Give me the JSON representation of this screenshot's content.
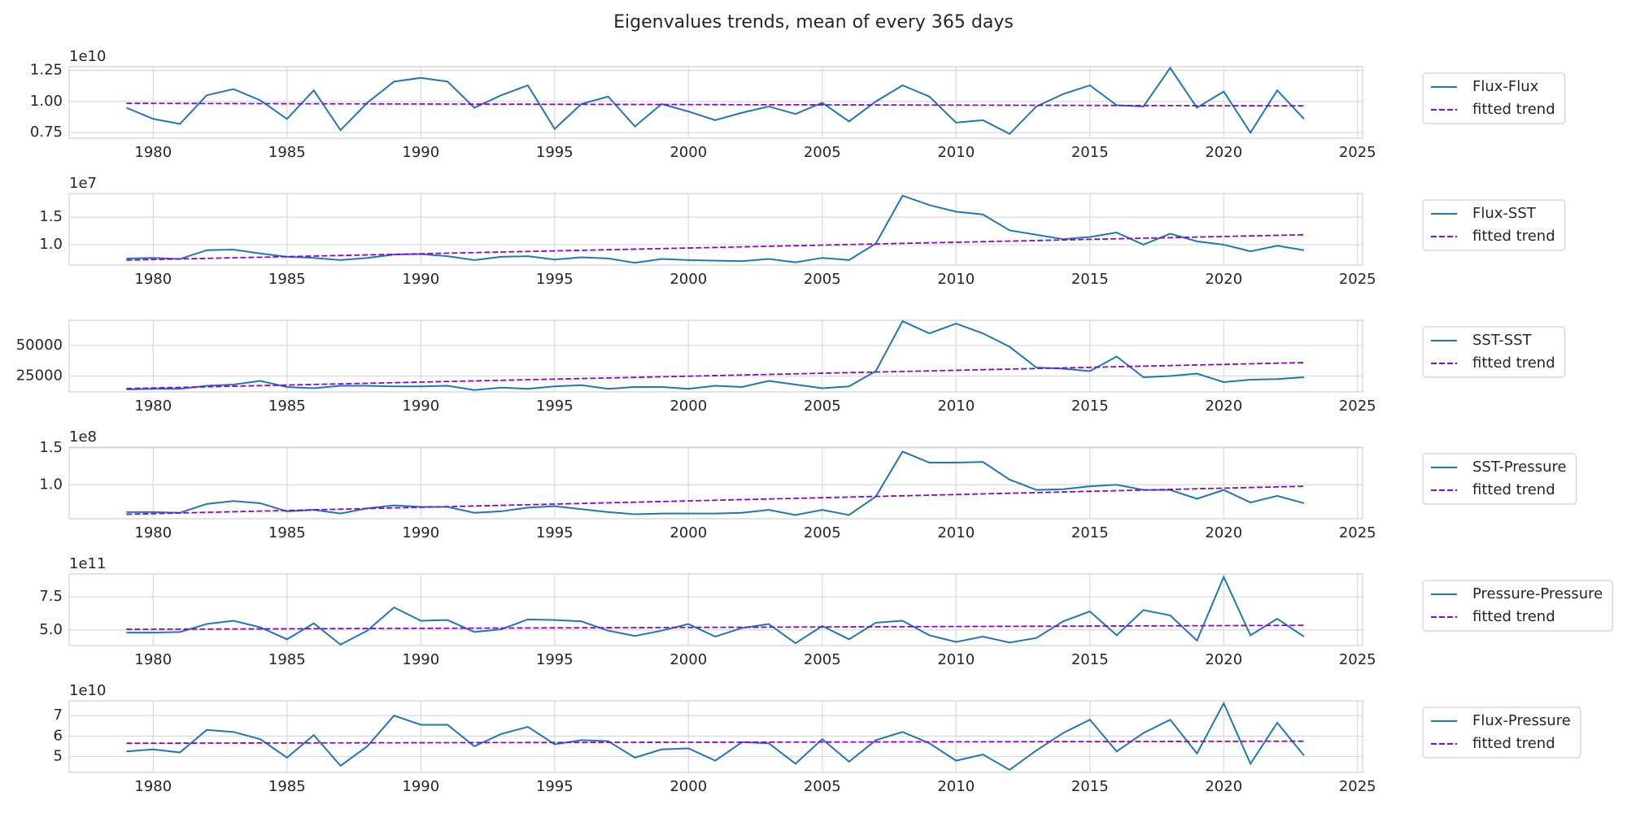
{
  "title": "Eigenvalues trends, mean of every 365 days",
  "chart_data": [
    {
      "type": "line",
      "x": [
        1979,
        1980,
        1981,
        1982,
        1983,
        1984,
        1985,
        1986,
        1987,
        1988,
        1989,
        1990,
        1991,
        1992,
        1993,
        1994,
        1995,
        1996,
        1997,
        1998,
        1999,
        2000,
        2001,
        2002,
        2003,
        2004,
        2005,
        2006,
        2007,
        2008,
        2009,
        2010,
        2011,
        2012,
        2013,
        2014,
        2015,
        2016,
        2017,
        2018,
        2019,
        2020,
        2021,
        2022,
        2023
      ],
      "series": [
        {
          "name": "Flux-Flux",
          "color": "#1f77b4",
          "linestyle": "solid",
          "values": [
            0.95,
            0.86,
            0.82,
            1.05,
            1.1,
            1.01,
            0.86,
            1.09,
            0.77,
            0.99,
            1.16,
            1.19,
            1.16,
            0.95,
            1.05,
            1.13,
            0.78,
            0.98,
            1.04,
            0.8,
            0.98,
            0.92,
            0.85,
            0.91,
            0.96,
            0.9,
            0.99,
            0.84,
            1.0,
            1.13,
            1.04,
            0.83,
            0.85,
            0.74,
            0.96,
            1.06,
            1.13,
            0.97,
            0.96,
            1.27,
            0.95,
            1.08,
            0.75,
            1.09,
            0.86
          ]
        },
        {
          "name": "fitted trend",
          "color": "#9400d3",
          "linestyle": "dashed",
          "x": [
            1979,
            2023
          ],
          "values": [
            0.985,
            0.965
          ]
        }
      ],
      "xlim": [
        1976.86,
        2025.19
      ],
      "xticks": [
        1980,
        1985,
        1990,
        1995,
        2000,
        2005,
        2010,
        2015,
        2020,
        2025
      ],
      "ylim": [
        0.705,
        1.28
      ],
      "yticks": [
        0.75,
        {
          "value": 1,
          "label": "1.00"
        },
        1.25
      ],
      "y_offset_label": "1e10",
      "grid": true,
      "legend": "outside right"
    },
    {
      "type": "line",
      "x": [
        1979,
        1980,
        1981,
        1982,
        1983,
        1984,
        1985,
        1986,
        1987,
        1988,
        1989,
        1990,
        1991,
        1992,
        1993,
        1994,
        1995,
        1996,
        1997,
        1998,
        1999,
        2000,
        2001,
        2002,
        2003,
        2004,
        2005,
        2006,
        2007,
        2008,
        2009,
        2010,
        2011,
        2012,
        2013,
        2014,
        2015,
        2016,
        2017,
        2018,
        2019,
        2020,
        2021,
        2022,
        2023
      ],
      "series": [
        {
          "name": "Flux-SST",
          "color": "#1f77b4",
          "linestyle": "solid",
          "values": [
            0.75,
            0.76,
            0.74,
            0.9,
            0.91,
            0.84,
            0.78,
            0.76,
            0.72,
            0.76,
            0.82,
            0.83,
            0.79,
            0.72,
            0.78,
            0.79,
            0.73,
            0.77,
            0.75,
            0.67,
            0.74,
            0.72,
            0.71,
            0.7,
            0.74,
            0.68,
            0.76,
            0.72,
            1.02,
            1.89,
            1.72,
            1.6,
            1.55,
            1.26,
            1.18,
            1.1,
            1.14,
            1.22,
            1.0,
            1.2,
            1.06,
            1.0,
            0.88,
            0.98,
            0.9
          ]
        },
        {
          "name": "fitted trend",
          "color": "#9400d3",
          "linestyle": "dashed",
          "x": [
            1979,
            2023
          ],
          "values": [
            0.72,
            1.18
          ]
        }
      ],
      "xlim": [
        1976.86,
        2025.19
      ],
      "xticks": [
        1980,
        1985,
        1990,
        1995,
        2000,
        2005,
        2010,
        2015,
        2020,
        2025
      ],
      "ylim": [
        0.63,
        1.93
      ],
      "yticks": [
        {
          "value": 1,
          "label": "1.0"
        },
        1.5
      ],
      "y_offset_label": "1e7",
      "grid": true,
      "legend": "outside right"
    },
    {
      "type": "line",
      "x": [
        1979,
        1980,
        1981,
        1982,
        1983,
        1984,
        1985,
        1986,
        1987,
        1988,
        1989,
        1990,
        1991,
        1992,
        1993,
        1994,
        1995,
        1996,
        1997,
        1998,
        1999,
        2000,
        2001,
        2002,
        2003,
        2004,
        2005,
        2006,
        2007,
        2008,
        2009,
        2010,
        2011,
        2012,
        2013,
        2014,
        2015,
        2016,
        2017,
        2018,
        2019,
        2020,
        2021,
        2022,
        2023
      ],
      "series": [
        {
          "name": "SST-SST",
          "color": "#1f77b4",
          "linestyle": "solid",
          "values": [
            14000,
            14500,
            14500,
            17000,
            18000,
            21000,
            16000,
            15000,
            17000,
            17000,
            16500,
            16500,
            17000,
            13500,
            15500,
            14500,
            16500,
            17500,
            14500,
            16000,
            16000,
            14500,
            17000,
            16000,
            21000,
            18000,
            15000,
            16500,
            29000,
            70000,
            60000,
            68000,
            60000,
            49000,
            32000,
            31000,
            29000,
            41000,
            24000,
            25000,
            27000,
            20000,
            22000,
            22500,
            24000
          ]
        },
        {
          "name": "fitted trend",
          "color": "#9400d3",
          "linestyle": "dashed",
          "x": [
            1979,
            2023
          ],
          "values": [
            14700,
            36000
          ]
        }
      ],
      "xlim": [
        1976.86,
        2025.19
      ],
      "xticks": [
        1980,
        1985,
        1990,
        1995,
        2000,
        2005,
        2010,
        2015,
        2020,
        2025
      ],
      "ylim": [
        12000,
        70700
      ],
      "yticks": [
        25000,
        50000
      ],
      "grid": true,
      "legend": "outside right"
    },
    {
      "type": "line",
      "x": [
        1979,
        1980,
        1981,
        1982,
        1983,
        1984,
        1985,
        1986,
        1987,
        1988,
        1989,
        1990,
        1991,
        1992,
        1993,
        1994,
        1995,
        1996,
        1997,
        1998,
        1999,
        2000,
        2001,
        2002,
        2003,
        2004,
        2005,
        2006,
        2007,
        2008,
        2009,
        2010,
        2011,
        2012,
        2013,
        2014,
        2015,
        2016,
        2017,
        2018,
        2019,
        2020,
        2021,
        2022,
        2023
      ],
      "series": [
        {
          "name": "SST-Pressure",
          "color": "#1f77b4",
          "linestyle": "solid",
          "values": [
            0.63,
            0.63,
            0.62,
            0.74,
            0.78,
            0.75,
            0.64,
            0.66,
            0.61,
            0.68,
            0.72,
            0.7,
            0.7,
            0.62,
            0.64,
            0.69,
            0.71,
            0.67,
            0.63,
            0.6,
            0.61,
            0.61,
            0.61,
            0.62,
            0.66,
            0.59,
            0.66,
            0.59,
            0.84,
            1.45,
            1.3,
            1.3,
            1.31,
            1.07,
            0.93,
            0.94,
            0.98,
            1.0,
            0.93,
            0.93,
            0.81,
            0.93,
            0.76,
            0.85,
            0.75
          ]
        },
        {
          "name": "fitted trend",
          "color": "#9400d3",
          "linestyle": "dashed",
          "x": [
            1979,
            2023
          ],
          "values": [
            0.6,
            0.98
          ]
        }
      ],
      "xlim": [
        1976.86,
        2025.19
      ],
      "xticks": [
        1980,
        1985,
        1990,
        1995,
        2000,
        2005,
        2010,
        2015,
        2020,
        2025
      ],
      "ylim": [
        0.54,
        1.51
      ],
      "yticks": [
        {
          "value": 1,
          "label": "1.0"
        },
        1.5
      ],
      "y_offset_label": "1e8",
      "grid": true,
      "legend": "outside right"
    },
    {
      "type": "line",
      "x": [
        1979,
        1980,
        1981,
        1982,
        1983,
        1984,
        1985,
        1986,
        1987,
        1988,
        1989,
        1990,
        1991,
        1992,
        1993,
        1994,
        1995,
        1996,
        1997,
        1998,
        1999,
        2000,
        2001,
        2002,
        2003,
        2004,
        2005,
        2006,
        2007,
        2008,
        2009,
        2010,
        2011,
        2012,
        2013,
        2014,
        2015,
        2016,
        2017,
        2018,
        2019,
        2020,
        2021,
        2022,
        2023
      ],
      "series": [
        {
          "name": "Pressure-Pressure",
          "color": "#1f77b4",
          "linestyle": "solid",
          "values": [
            4.8,
            4.8,
            4.85,
            5.45,
            5.7,
            5.2,
            4.3,
            5.5,
            3.9,
            4.95,
            6.7,
            5.7,
            5.75,
            4.85,
            5.05,
            5.8,
            5.75,
            5.65,
            4.95,
            4.55,
            4.95,
            5.45,
            4.5,
            5.15,
            5.45,
            4.0,
            5.3,
            4.3,
            5.55,
            5.7,
            4.6,
            4.1,
            4.5,
            4.05,
            4.4,
            5.65,
            6.4,
            4.6,
            6.5,
            6.1,
            4.2,
            9.0,
            4.6,
            5.85,
            4.5
          ]
        },
        {
          "name": "fitted trend",
          "color": "#9400d3",
          "linestyle": "dashed",
          "x": [
            1979,
            2023
          ],
          "values": [
            5.05,
            5.35
          ]
        }
      ],
      "xlim": [
        1976.86,
        2025.19
      ],
      "xticks": [
        1980,
        1985,
        1990,
        1995,
        2000,
        2005,
        2010,
        2015,
        2020,
        2025
      ],
      "ylim": [
        3.83,
        9.22
      ],
      "yticks": [
        {
          "value": 5,
          "label": "5.0"
        },
        7.5
      ],
      "y_offset_label": "1e11",
      "grid": true,
      "legend": "outside right"
    },
    {
      "type": "line",
      "x": [
        1979,
        1980,
        1981,
        1982,
        1983,
        1984,
        1985,
        1986,
        1987,
        1988,
        1989,
        1990,
        1991,
        1992,
        1993,
        1994,
        1995,
        1996,
        1997,
        1998,
        1999,
        2000,
        2001,
        2002,
        2003,
        2004,
        2005,
        2006,
        2007,
        2008,
        2009,
        2010,
        2011,
        2012,
        2013,
        2014,
        2015,
        2016,
        2017,
        2018,
        2019,
        2020,
        2021,
        2022,
        2023
      ],
      "series": [
        {
          "name": "Flux-Pressure",
          "color": "#1f77b4",
          "linestyle": "solid",
          "values": [
            5.25,
            5.35,
            5.2,
            6.3,
            6.2,
            5.85,
            4.95,
            6.05,
            4.55,
            5.5,
            7.0,
            6.55,
            6.55,
            5.5,
            6.1,
            6.45,
            5.6,
            5.8,
            5.75,
            4.95,
            5.35,
            5.4,
            4.8,
            5.7,
            5.65,
            4.65,
            5.85,
            4.75,
            5.8,
            6.2,
            5.65,
            4.8,
            5.1,
            4.35,
            5.3,
            6.15,
            6.8,
            5.25,
            6.15,
            6.8,
            5.15,
            7.6,
            4.65,
            6.65,
            5.05
          ]
        },
        {
          "name": "fitted trend",
          "color": "#9400d3",
          "linestyle": "dashed",
          "x": [
            1979,
            2023
          ],
          "values": [
            5.65,
            5.75
          ]
        }
      ],
      "xlim": [
        1976.86,
        2025.19
      ],
      "xticks": [
        1980,
        1985,
        1990,
        1995,
        2000,
        2005,
        2010,
        2015,
        2020,
        2025
      ],
      "ylim": [
        4.23,
        7.72
      ],
      "yticks": [
        5,
        6,
        7
      ],
      "y_offset_label": "1e10",
      "grid": true,
      "legend": "outside right"
    }
  ]
}
